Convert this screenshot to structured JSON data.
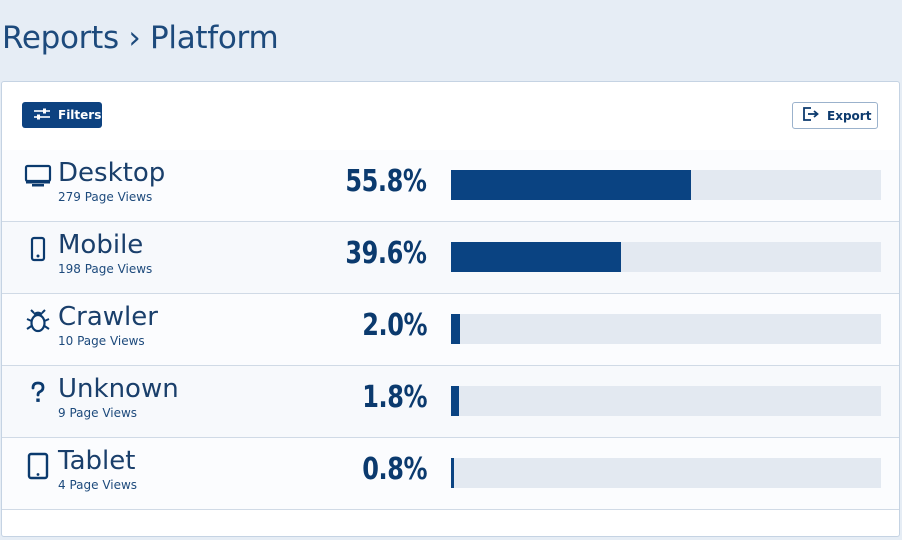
{
  "header": {
    "title": "Reports › Platform"
  },
  "toolbar": {
    "filters_label": "Filters",
    "export_label": "Export"
  },
  "platforms": [
    {
      "id": "desktop",
      "icon": "desktop-icon",
      "name": "Desktop",
      "views": "279 Page Views",
      "percent_label": "55.8%",
      "percent": 55.8
    },
    {
      "id": "mobile",
      "icon": "mobile-icon",
      "name": "Mobile",
      "views": "198 Page Views",
      "percent_label": "39.6%",
      "percent": 39.6
    },
    {
      "id": "crawler",
      "icon": "bug-icon",
      "name": "Crawler",
      "views": "10 Page Views",
      "percent_label": "2.0%",
      "percent": 2.0
    },
    {
      "id": "unknown",
      "icon": "question-icon",
      "name": "Unknown",
      "views": "9 Page Views",
      "percent_label": "1.8%",
      "percent": 1.8
    },
    {
      "id": "tablet",
      "icon": "tablet-icon",
      "name": "Tablet",
      "views": "4 Page Views",
      "percent_label": "0.8%",
      "percent": 0.8
    }
  ],
  "colors": {
    "accent": "#0a4382",
    "track": "#e3e9f1",
    "background": "#e6edf5"
  }
}
